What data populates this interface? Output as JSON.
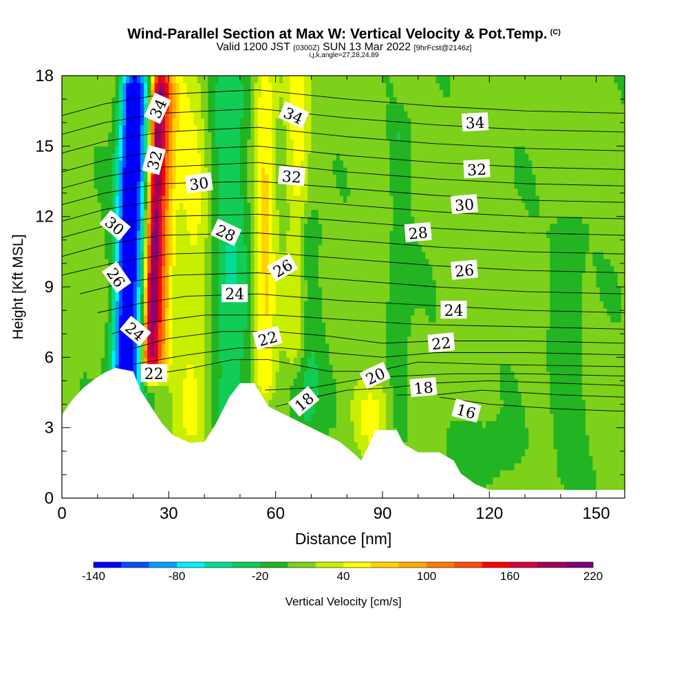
{
  "header": {
    "title": "Wind-Parallel Section at Max W: Vertical Velocity & Pot.Temp.",
    "copyright": "(C)",
    "valid_prefix": "Valid 1200 JST",
    "valid_zulu": "(0300Z)",
    "valid_date": "SUN 13 Mar 2022",
    "forecast": "[9hrFcst@2146z]",
    "indices": "i,j,k,angle=27,28,24,89"
  },
  "chart_data": {
    "type": "heatmap",
    "xlabel": "Distance [nm]",
    "ylabel": "Height [Kft MSL]",
    "xlim": [
      0,
      158
    ],
    "ylim": [
      0,
      18
    ],
    "xticks": [
      0,
      30,
      60,
      90,
      120,
      150
    ],
    "yticks": [
      0,
      3,
      6,
      9,
      12,
      15,
      18
    ],
    "colorbar": {
      "label": "Vertical Velocity [cm/s]",
      "tick_labels": [
        -140,
        -80,
        -20,
        40,
        100,
        160,
        220
      ],
      "levels": [
        -140,
        -120,
        -100,
        -80,
        -60,
        -40,
        -20,
        0,
        20,
        40,
        60,
        80,
        100,
        120,
        140,
        160,
        180,
        200,
        220
      ],
      "colors": [
        "#0000ff",
        "#0050ff",
        "#00a0ff",
        "#00f0ff",
        "#00dd99",
        "#11cc55",
        "#22b422",
        "#7dd11a",
        "#c8ee00",
        "#ffff00",
        "#ffd200",
        "#ffaa00",
        "#ff7a00",
        "#ff4b00",
        "#ff0000",
        "#d7003a",
        "#a0005a",
        "#7d007d"
      ]
    },
    "terrain": [
      [
        0,
        3.55
      ],
      [
        3,
        4.2
      ],
      [
        6,
        4.7
      ],
      [
        9,
        5.05
      ],
      [
        12,
        5.35
      ],
      [
        15,
        5.55
      ],
      [
        20,
        5.4
      ],
      [
        22,
        4.6
      ],
      [
        25,
        3.9
      ],
      [
        28,
        3.2
      ],
      [
        31,
        2.7
      ],
      [
        36,
        2.35
      ],
      [
        40,
        2.4
      ],
      [
        43,
        3.1
      ],
      [
        47,
        4.3
      ],
      [
        50,
        4.9
      ],
      [
        54,
        4.9
      ],
      [
        56,
        4.4
      ],
      [
        58,
        3.9
      ],
      [
        62,
        3.6
      ],
      [
        66,
        3.3
      ],
      [
        70,
        3.0
      ],
      [
        74,
        2.7
      ],
      [
        78,
        2.4
      ],
      [
        82,
        1.9
      ],
      [
        84,
        1.6
      ],
      [
        86,
        2.2
      ],
      [
        88,
        2.9
      ],
      [
        94,
        2.9
      ],
      [
        96,
        2.3
      ],
      [
        100,
        1.95
      ],
      [
        106,
        1.95
      ],
      [
        110,
        1.6
      ],
      [
        112,
        1.05
      ],
      [
        116,
        0.6
      ],
      [
        120,
        0.35
      ],
      [
        158,
        0.35
      ]
    ],
    "w_features": [
      {
        "x": 16.5,
        "slope": 0.22,
        "y0": 3.0,
        "y1": 18,
        "width": 3.5,
        "w": -110
      },
      {
        "x": 20.0,
        "slope": 0.1,
        "y0": 4.5,
        "y1": 18,
        "width": 4.0,
        "w": -70
      },
      {
        "x": 24.5,
        "slope": 0.22,
        "y0": 5.5,
        "y1": 18,
        "width": 2.2,
        "w": 150
      },
      {
        "x": 27.0,
        "slope": 0.22,
        "y0": 5.5,
        "y1": 18,
        "width": 3.2,
        "w": 90
      },
      {
        "x": 37.0,
        "slope": 0.0,
        "y0": 2.5,
        "y1": 18,
        "width": 5.0,
        "w": 35
      },
      {
        "x": 47.0,
        "slope": 0.0,
        "y0": 3.0,
        "y1": 18,
        "width": 6.0,
        "w": -45
      },
      {
        "x": 57.0,
        "slope": 0.0,
        "y0": 4.5,
        "y1": 18,
        "width": 3.0,
        "w": 55
      },
      {
        "x": 66.0,
        "slope": 0.0,
        "y0": 6.0,
        "y1": 18,
        "width": 3.0,
        "w": 42
      },
      {
        "x": 69.0,
        "slope": 0.0,
        "y0": 3.0,
        "y1": 12,
        "width": 4.0,
        "w": -30
      },
      {
        "x": 87.0,
        "slope": 0.0,
        "y0": 2.5,
        "y1": 4.5,
        "width": 5.0,
        "w": 40
      },
      {
        "x": 95.0,
        "slope": 0.0,
        "y0": 3.0,
        "y1": 16,
        "width": 3.0,
        "w": -25
      },
      {
        "x": 118.0,
        "slope": 0.0,
        "y0": 0.5,
        "y1": 3.0,
        "width": 10.0,
        "w": -20
      },
      {
        "x": 142.0,
        "slope": 0.0,
        "y0": 0.5,
        "y1": 12,
        "width": 5.0,
        "w": -20
      }
    ],
    "theta_contours": [
      {
        "label": "16",
        "points": [
          [
            106,
            4.3
          ],
          [
            120,
            4.0
          ],
          [
            140,
            3.8
          ],
          [
            158,
            3.7
          ]
        ]
      },
      {
        "label": "17",
        "points": [
          [
            94,
            4.4
          ],
          [
            105,
            4.4
          ],
          [
            118,
            4.6
          ],
          [
            140,
            4.4
          ],
          [
            158,
            4.3
          ]
        ]
      },
      {
        "label": "18",
        "points": [
          [
            60,
            3.9
          ],
          [
            68,
            4.2
          ],
          [
            80,
            4.6
          ],
          [
            92,
            4.7
          ],
          [
            104,
            4.9
          ],
          [
            120,
            5.0
          ],
          [
            140,
            4.9
          ],
          [
            158,
            4.8
          ]
        ]
      },
      {
        "label": "19",
        "points": [
          [
            57,
            4.6
          ],
          [
            70,
            4.7
          ],
          [
            85,
            5.1
          ],
          [
            95,
            5.2
          ],
          [
            110,
            5.3
          ],
          [
            130,
            5.3
          ],
          [
            158,
            5.2
          ]
        ]
      },
      {
        "label": "20",
        "points": [
          [
            22,
            5.2
          ],
          [
            35,
            5.5
          ],
          [
            48,
            5.9
          ],
          [
            58,
            5.9
          ],
          [
            75,
            5.4
          ],
          [
            88,
            5.4
          ],
          [
            100,
            5.8
          ],
          [
            120,
            5.7
          ],
          [
            158,
            5.6
          ]
        ]
      },
      {
        "label": "21",
        "points": [
          [
            20,
            5.7
          ],
          [
            35,
            6.1
          ],
          [
            50,
            6.4
          ],
          [
            62,
            6.4
          ],
          [
            75,
            6.2
          ],
          [
            90,
            6.0
          ],
          [
            105,
            6.2
          ],
          [
            130,
            6.2
          ],
          [
            158,
            6.1
          ]
        ]
      },
      {
        "label": "22",
        "points": [
          [
            18,
            6.3
          ],
          [
            30,
            6.8
          ],
          [
            45,
            7.1
          ],
          [
            60,
            7.1
          ],
          [
            75,
            6.9
          ],
          [
            90,
            6.6
          ],
          [
            105,
            6.7
          ],
          [
            130,
            6.7
          ],
          [
            158,
            6.6
          ]
        ]
      },
      {
        "label": "23",
        "points": [
          [
            14,
            7.0
          ],
          [
            25,
            7.5
          ],
          [
            40,
            7.8
          ],
          [
            60,
            7.8
          ],
          [
            80,
            7.6
          ],
          [
            100,
            7.4
          ],
          [
            130,
            7.3
          ],
          [
            158,
            7.2
          ]
        ]
      },
      {
        "label": "24",
        "points": [
          [
            10,
            7.9
          ],
          [
            22,
            8.3
          ],
          [
            35,
            8.6
          ],
          [
            55,
            8.7
          ],
          [
            80,
            8.4
          ],
          [
            105,
            8.2
          ],
          [
            130,
            8.0
          ],
          [
            158,
            7.9
          ]
        ]
      },
      {
        "label": "25",
        "points": [
          [
            5,
            8.7
          ],
          [
            18,
            9.2
          ],
          [
            32,
            9.5
          ],
          [
            55,
            9.6
          ],
          [
            80,
            9.3
          ],
          [
            105,
            9.0
          ],
          [
            130,
            8.8
          ],
          [
            158,
            8.7
          ]
        ]
      },
      {
        "label": "26",
        "points": [
          [
            0,
            9.5
          ],
          [
            14,
            10.0
          ],
          [
            30,
            10.4
          ],
          [
            55,
            10.5
          ],
          [
            80,
            10.2
          ],
          [
            105,
            9.9
          ],
          [
            130,
            9.7
          ],
          [
            158,
            9.6
          ]
        ]
      },
      {
        "label": "27",
        "points": [
          [
            0,
            10.3
          ],
          [
            12,
            10.8
          ],
          [
            28,
            11.2
          ],
          [
            55,
            11.3
          ],
          [
            80,
            11.0
          ],
          [
            105,
            10.7
          ],
          [
            130,
            10.5
          ],
          [
            158,
            10.4
          ]
        ]
      },
      {
        "label": "28",
        "points": [
          [
            0,
            11.1
          ],
          [
            12,
            11.6
          ],
          [
            28,
            12.0
          ],
          [
            55,
            12.1
          ],
          [
            80,
            11.8
          ],
          [
            105,
            11.5
          ],
          [
            130,
            11.3
          ],
          [
            158,
            11.2
          ]
        ]
      },
      {
        "label": "29",
        "points": [
          [
            0,
            11.8
          ],
          [
            12,
            12.3
          ],
          [
            28,
            12.7
          ],
          [
            55,
            12.8
          ],
          [
            80,
            12.5
          ],
          [
            105,
            12.2
          ],
          [
            130,
            12.0
          ],
          [
            158,
            11.9
          ]
        ]
      },
      {
        "label": "30",
        "points": [
          [
            0,
            12.5
          ],
          [
            12,
            13.0
          ],
          [
            28,
            13.4
          ],
          [
            55,
            13.5
          ],
          [
            80,
            13.2
          ],
          [
            105,
            12.9
          ],
          [
            130,
            12.7
          ],
          [
            158,
            12.6
          ]
        ]
      },
      {
        "label": "31",
        "points": [
          [
            0,
            13.2
          ],
          [
            12,
            13.7
          ],
          [
            28,
            14.1
          ],
          [
            55,
            14.3
          ],
          [
            80,
            13.9
          ],
          [
            105,
            13.6
          ],
          [
            130,
            13.4
          ],
          [
            158,
            13.3
          ]
        ]
      },
      {
        "label": "32",
        "points": [
          [
            0,
            13.9
          ],
          [
            12,
            14.4
          ],
          [
            28,
            14.8
          ],
          [
            55,
            15.0
          ],
          [
            80,
            14.6
          ],
          [
            105,
            14.3
          ],
          [
            130,
            14.1
          ],
          [
            158,
            14.0
          ]
        ]
      },
      {
        "label": "33",
        "points": [
          [
            0,
            14.7
          ],
          [
            12,
            15.2
          ],
          [
            28,
            15.6
          ],
          [
            55,
            15.8
          ],
          [
            80,
            15.4
          ],
          [
            105,
            15.1
          ],
          [
            130,
            14.9
          ],
          [
            158,
            14.8
          ]
        ]
      },
      {
        "label": "34",
        "points": [
          [
            0,
            15.5
          ],
          [
            12,
            16.0
          ],
          [
            28,
            16.4
          ],
          [
            55,
            16.6
          ],
          [
            80,
            16.2
          ],
          [
            105,
            15.9
          ],
          [
            130,
            15.7
          ],
          [
            158,
            15.6
          ]
        ]
      },
      {
        "label": "35",
        "points": [
          [
            0,
            16.3
          ],
          [
            12,
            16.8
          ],
          [
            28,
            17.2
          ],
          [
            55,
            17.4
          ],
          [
            80,
            17.0
          ],
          [
            105,
            16.7
          ],
          [
            130,
            16.5
          ],
          [
            158,
            16.4
          ]
        ]
      }
    ],
    "theta_labels": [
      {
        "text": "34",
        "x": 27.0,
        "y": 16.6,
        "angle": -65
      },
      {
        "text": "32",
        "x": 26.0,
        "y": 14.4,
        "angle": -75
      },
      {
        "text": "30",
        "x": 14.8,
        "y": 11.6,
        "angle": 40
      },
      {
        "text": "26",
        "x": 15.2,
        "y": 9.4,
        "angle": 55
      },
      {
        "text": "24",
        "x": 20.5,
        "y": 7.1,
        "angle": 40
      },
      {
        "text": "22",
        "x": 25.8,
        "y": 5.3,
        "angle": 0
      },
      {
        "text": "30",
        "x": 38.5,
        "y": 13.4,
        "angle": -8
      },
      {
        "text": "28",
        "x": 46.0,
        "y": 11.3,
        "angle": 25
      },
      {
        "text": "24",
        "x": 48.5,
        "y": 8.7,
        "angle": 0
      },
      {
        "text": "34",
        "x": 65.0,
        "y": 16.3,
        "angle": 25
      },
      {
        "text": "32",
        "x": 64.5,
        "y": 13.7,
        "angle": 5
      },
      {
        "text": "26",
        "x": 62.0,
        "y": 9.8,
        "angle": -30
      },
      {
        "text": "22",
        "x": 57.8,
        "y": 6.8,
        "angle": -15
      },
      {
        "text": "18",
        "x": 68.0,
        "y": 4.1,
        "angle": -40
      },
      {
        "text": "20",
        "x": 88.0,
        "y": 5.2,
        "angle": -25
      },
      {
        "text": "28",
        "x": 100.0,
        "y": 11.3,
        "angle": -5
      },
      {
        "text": "18",
        "x": 101.5,
        "y": 4.7,
        "angle": -5
      },
      {
        "text": "34",
        "x": 116.0,
        "y": 16.0,
        "angle": -3
      },
      {
        "text": "32",
        "x": 116.5,
        "y": 14.0,
        "angle": -3
      },
      {
        "text": "30",
        "x": 113.0,
        "y": 12.5,
        "angle": -5
      },
      {
        "text": "26",
        "x": 113.0,
        "y": 9.7,
        "angle": -5
      },
      {
        "text": "24",
        "x": 110.0,
        "y": 8.0,
        "angle": 0
      },
      {
        "text": "22",
        "x": 106.5,
        "y": 6.6,
        "angle": -5
      },
      {
        "text": "16",
        "x": 113.5,
        "y": 3.7,
        "angle": 15
      }
    ]
  }
}
